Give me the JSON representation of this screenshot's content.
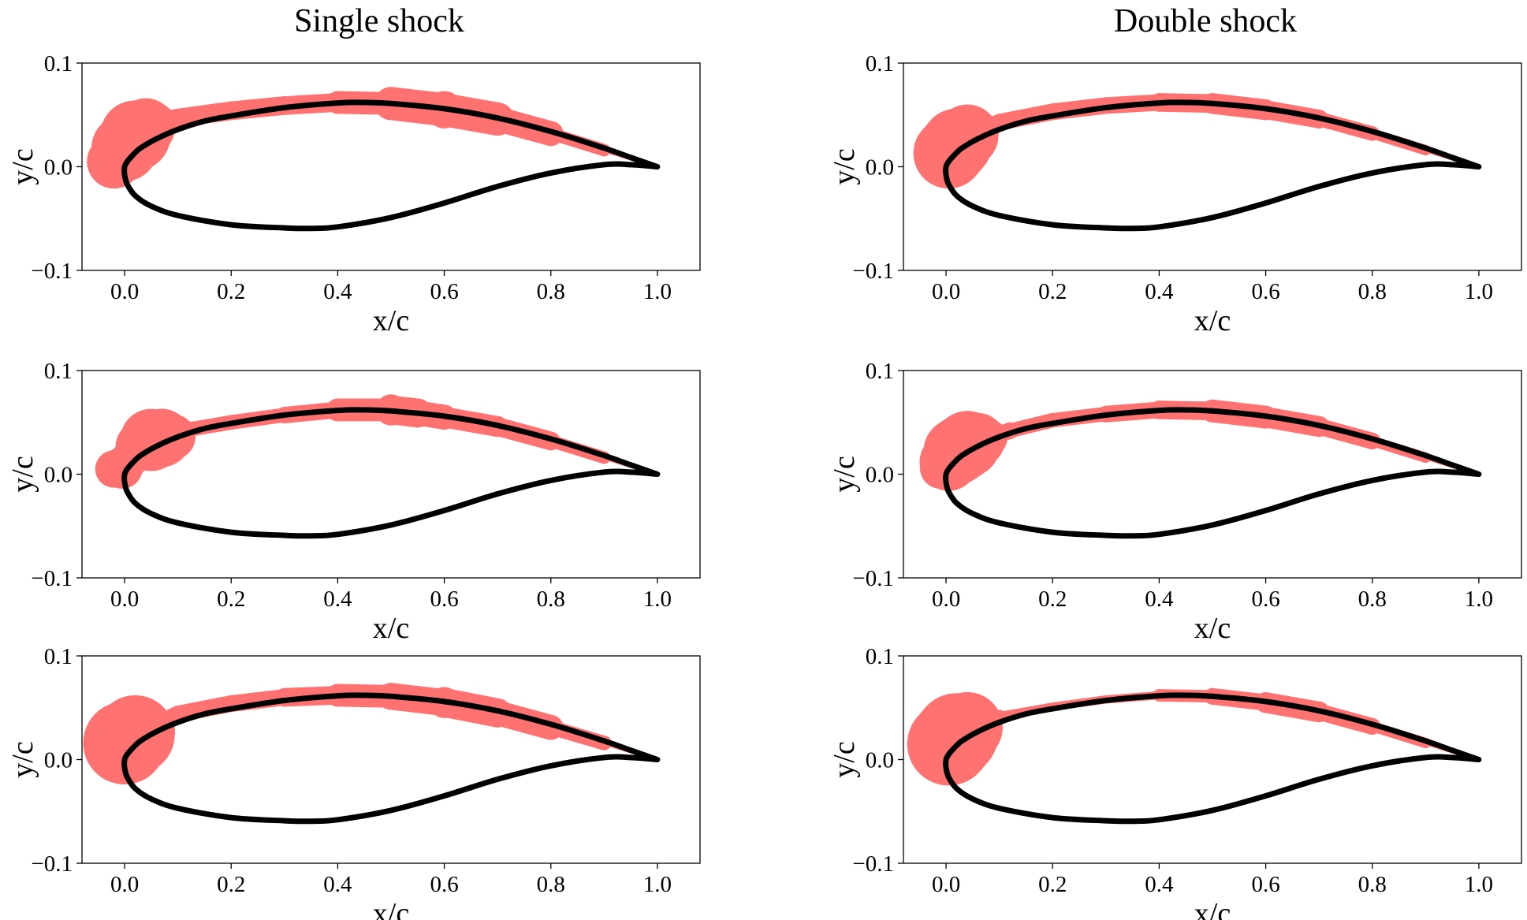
{
  "column_titles": [
    "Single shock",
    "Double shock"
  ],
  "chart_data": [
    {
      "type": "line",
      "column": "Single shock",
      "row": 1,
      "xlabel": "x/c",
      "ylabel": "y/c",
      "xlim": [
        -0.08,
        1.08
      ],
      "ylim": [
        -0.1,
        0.1
      ],
      "xticks": [
        "0.0",
        "0.2",
        "0.4",
        "0.6",
        "0.8",
        "1.0"
      ],
      "yticks": [
        "−0.1",
        "0.0",
        "0.1"
      ],
      "series": [
        {
          "style": "black-line",
          "x": [
            1.0,
            0.95,
            0.9,
            0.8,
            0.7,
            0.6,
            0.5,
            0.45,
            0.4,
            0.3,
            0.2,
            0.15,
            0.1,
            0.06,
            0.03,
            0.015,
            0.005,
            0.0,
            0.0,
            0.005,
            0.02,
            0.05,
            0.1,
            0.2,
            0.3,
            0.35,
            0.4,
            0.5,
            0.6,
            0.7,
            0.8,
            0.9,
            0.95,
            1.0
          ],
          "y": [
            0.0,
            0.009,
            0.018,
            0.034,
            0.047,
            0.056,
            0.061,
            0.062,
            0.0615,
            0.057,
            0.049,
            0.044,
            0.036,
            0.027,
            0.018,
            0.011,
            0.005,
            0.0,
            -0.008,
            -0.017,
            -0.028,
            -0.038,
            -0.047,
            -0.056,
            -0.059,
            -0.0595,
            -0.058,
            -0.049,
            -0.035,
            -0.019,
            -0.006,
            0.002,
            0.002,
            0.0
          ]
        },
        {
          "style": "red-band",
          "x": [
            -0.02,
            0.0,
            0.02,
            0.04,
            0.06,
            0.1,
            0.2,
            0.3,
            0.4,
            0.5,
            0.6,
            0.7,
            0.8,
            0.9,
            1.0
          ],
          "y": [
            0.005,
            0.018,
            0.03,
            0.038,
            0.043,
            0.047,
            0.054,
            0.059,
            0.062,
            0.061,
            0.055,
            0.046,
            0.032,
            0.016,
            0.0
          ],
          "width": [
            0.026,
            0.032,
            0.034,
            0.028,
            0.018,
            0.009,
            0.009,
            0.009,
            0.011,
            0.016,
            0.018,
            0.016,
            0.012,
            0.006,
            0.002
          ]
        }
      ]
    },
    {
      "type": "line",
      "column": "Single shock",
      "row": 2,
      "xlabel": "x/c",
      "ylabel": "y/c",
      "xlim": [
        -0.08,
        1.08
      ],
      "ylim": [
        -0.1,
        0.1
      ],
      "xticks": [
        "0.0",
        "0.2",
        "0.4",
        "0.6",
        "0.8",
        "1.0"
      ],
      "yticks": [
        "−0.1",
        "0.0",
        "0.1"
      ],
      "series": [
        {
          "style": "black-line",
          "x": [
            1.0,
            0.95,
            0.9,
            0.8,
            0.7,
            0.6,
            0.5,
            0.45,
            0.4,
            0.3,
            0.2,
            0.15,
            0.1,
            0.06,
            0.03,
            0.015,
            0.005,
            0.0,
            0.0,
            0.005,
            0.02,
            0.05,
            0.1,
            0.2,
            0.3,
            0.35,
            0.4,
            0.5,
            0.6,
            0.7,
            0.8,
            0.9,
            0.95,
            1.0
          ],
          "y": [
            0.0,
            0.009,
            0.018,
            0.034,
            0.047,
            0.056,
            0.061,
            0.062,
            0.0615,
            0.057,
            0.049,
            0.044,
            0.036,
            0.027,
            0.018,
            0.011,
            0.005,
            0.0,
            -0.008,
            -0.017,
            -0.028,
            -0.038,
            -0.047,
            -0.056,
            -0.059,
            -0.0595,
            -0.058,
            -0.049,
            -0.035,
            -0.019,
            -0.006,
            0.002,
            0.002,
            0.0
          ]
        },
        {
          "style": "red-band",
          "x": [
            -0.02,
            -0.005,
            0.01,
            0.03,
            0.05,
            0.07,
            0.09,
            0.12,
            0.2,
            0.3,
            0.4,
            0.5,
            0.55,
            0.6,
            0.7,
            0.8,
            0.9,
            1.0
          ],
          "y": [
            0.005,
            0.006,
            0.015,
            0.027,
            0.033,
            0.035,
            0.036,
            0.043,
            0.05,
            0.057,
            0.062,
            0.062,
            0.059,
            0.055,
            0.046,
            0.032,
            0.016,
            0.0
          ],
          "width": [
            0.018,
            0.02,
            0.018,
            0.024,
            0.03,
            0.028,
            0.022,
            0.008,
            0.007,
            0.008,
            0.011,
            0.015,
            0.014,
            0.012,
            0.01,
            0.009,
            0.006,
            0.002
          ]
        }
      ]
    },
    {
      "type": "line",
      "column": "Single shock",
      "row": 3,
      "xlabel": "x/c",
      "ylabel": "y/c",
      "xlim": [
        -0.08,
        1.08
      ],
      "ylim": [
        -0.1,
        0.1
      ],
      "xticks": [
        "0.0",
        "0.2",
        "0.4",
        "0.6",
        "0.8",
        "1.0"
      ],
      "yticks": [
        "−0.1",
        "0.0",
        "0.1"
      ],
      "series": [
        {
          "style": "black-line",
          "x": [
            1.0,
            0.95,
            0.9,
            0.8,
            0.7,
            0.6,
            0.5,
            0.45,
            0.4,
            0.3,
            0.2,
            0.15,
            0.1,
            0.06,
            0.03,
            0.015,
            0.005,
            0.0,
            0.0,
            0.005,
            0.02,
            0.05,
            0.1,
            0.2,
            0.3,
            0.35,
            0.4,
            0.5,
            0.6,
            0.7,
            0.8,
            0.9,
            0.95,
            1.0
          ],
          "y": [
            0.0,
            0.009,
            0.018,
            0.034,
            0.047,
            0.056,
            0.061,
            0.062,
            0.0615,
            0.057,
            0.049,
            0.044,
            0.036,
            0.027,
            0.018,
            0.011,
            0.005,
            0.0,
            -0.008,
            -0.017,
            -0.028,
            -0.038,
            -0.047,
            -0.056,
            -0.059,
            -0.0595,
            -0.058,
            -0.049,
            -0.035,
            -0.019,
            -0.006,
            0.002,
            0.002,
            0.0
          ]
        },
        {
          "style": "red-band",
          "x": [
            -0.015,
            0.0,
            0.02,
            0.04,
            0.06,
            0.1,
            0.2,
            0.3,
            0.4,
            0.5,
            0.6,
            0.7,
            0.8,
            0.9,
            1.0
          ],
          "y": [
            0.008,
            0.016,
            0.024,
            0.027,
            0.034,
            0.044,
            0.054,
            0.06,
            0.062,
            0.061,
            0.055,
            0.045,
            0.031,
            0.016,
            0.0
          ],
          "width": [
            0.02,
            0.04,
            0.038,
            0.028,
            0.012,
            0.008,
            0.008,
            0.009,
            0.011,
            0.013,
            0.015,
            0.014,
            0.012,
            0.007,
            0.002
          ]
        }
      ]
    },
    {
      "type": "line",
      "column": "Double shock",
      "row": 1,
      "xlabel": "x/c",
      "ylabel": "y/c",
      "xlim": [
        -0.08,
        1.08
      ],
      "ylim": [
        -0.1,
        0.1
      ],
      "xticks": [
        "0.0",
        "0.2",
        "0.4",
        "0.6",
        "0.8",
        "1.0"
      ],
      "yticks": [
        "−0.1",
        "0.0",
        "0.1"
      ],
      "series": [
        {
          "style": "black-line",
          "x": [
            1.0,
            0.95,
            0.9,
            0.8,
            0.7,
            0.6,
            0.5,
            0.45,
            0.4,
            0.3,
            0.2,
            0.15,
            0.1,
            0.06,
            0.03,
            0.015,
            0.005,
            0.0,
            0.0,
            0.005,
            0.02,
            0.05,
            0.1,
            0.2,
            0.3,
            0.35,
            0.4,
            0.5,
            0.6,
            0.7,
            0.8,
            0.9,
            0.95,
            1.0
          ],
          "y": [
            0.0,
            0.009,
            0.018,
            0.034,
            0.047,
            0.056,
            0.061,
            0.062,
            0.0615,
            0.057,
            0.049,
            0.044,
            0.036,
            0.027,
            0.018,
            0.011,
            0.005,
            0.0,
            -0.008,
            -0.017,
            -0.028,
            -0.038,
            -0.047,
            -0.056,
            -0.059,
            -0.0595,
            -0.058,
            -0.049,
            -0.035,
            -0.019,
            -0.006,
            0.002,
            0.002,
            0.0
          ]
        },
        {
          "style": "red-band",
          "x": [
            -0.01,
            0.005,
            0.02,
            0.04,
            0.06,
            0.1,
            0.2,
            0.3,
            0.4,
            0.5,
            0.6,
            0.7,
            0.8,
            0.9,
            1.0
          ],
          "y": [
            0.006,
            0.013,
            0.022,
            0.03,
            0.034,
            0.043,
            0.053,
            0.059,
            0.062,
            0.061,
            0.055,
            0.046,
            0.032,
            0.016,
            0.0
          ],
          "width": [
            0.022,
            0.034,
            0.034,
            0.03,
            0.02,
            0.008,
            0.008,
            0.008,
            0.009,
            0.01,
            0.01,
            0.009,
            0.007,
            0.005,
            0.002
          ]
        }
      ]
    },
    {
      "type": "line",
      "column": "Double shock",
      "row": 2,
      "xlabel": "x/c",
      "ylabel": "y/c",
      "xlim": [
        -0.08,
        1.08
      ],
      "ylim": [
        -0.1,
        0.1
      ],
      "xticks": [
        "0.0",
        "0.2",
        "0.4",
        "0.6",
        "0.8",
        "1.0"
      ],
      "yticks": [
        "−0.1",
        "0.0",
        "0.1"
      ],
      "series": [
        {
          "style": "black-line",
          "x": [
            1.0,
            0.95,
            0.9,
            0.8,
            0.7,
            0.6,
            0.5,
            0.45,
            0.4,
            0.3,
            0.2,
            0.15,
            0.1,
            0.06,
            0.03,
            0.015,
            0.005,
            0.0,
            0.0,
            0.005,
            0.02,
            0.05,
            0.1,
            0.2,
            0.3,
            0.35,
            0.4,
            0.5,
            0.6,
            0.7,
            0.8,
            0.9,
            0.95,
            1.0
          ],
          "y": [
            0.0,
            0.009,
            0.018,
            0.034,
            0.047,
            0.056,
            0.061,
            0.062,
            0.0615,
            0.057,
            0.049,
            0.044,
            0.036,
            0.027,
            0.018,
            0.011,
            0.005,
            0.0,
            -0.008,
            -0.017,
            -0.028,
            -0.038,
            -0.047,
            -0.056,
            -0.059,
            -0.0595,
            -0.058,
            -0.049,
            -0.035,
            -0.019,
            -0.006,
            0.002,
            0.002,
            0.0
          ]
        },
        {
          "style": "red-band",
          "x": [
            -0.01,
            0.005,
            0.02,
            0.04,
            0.06,
            0.08,
            0.12,
            0.2,
            0.3,
            0.4,
            0.5,
            0.6,
            0.7,
            0.8,
            0.9,
            1.0
          ],
          "y": [
            0.006,
            0.012,
            0.022,
            0.029,
            0.033,
            0.035,
            0.042,
            0.052,
            0.058,
            0.062,
            0.061,
            0.055,
            0.046,
            0.032,
            0.016,
            0.0
          ],
          "width": [
            0.02,
            0.028,
            0.032,
            0.032,
            0.026,
            0.018,
            0.008,
            0.007,
            0.008,
            0.009,
            0.011,
            0.011,
            0.01,
            0.008,
            0.005,
            0.002
          ]
        }
      ]
    },
    {
      "type": "line",
      "column": "Double shock",
      "row": 3,
      "xlabel": "x/c",
      "ylabel": "y/c",
      "xlim": [
        -0.08,
        1.08
      ],
      "ylim": [
        -0.1,
        0.1
      ],
      "xticks": [
        "0.0",
        "0.2",
        "0.4",
        "0.6",
        "0.8",
        "1.0"
      ],
      "yticks": [
        "−0.1",
        "0.0",
        "0.1"
      ],
      "series": [
        {
          "style": "black-line",
          "x": [
            1.0,
            0.95,
            0.9,
            0.8,
            0.7,
            0.6,
            0.5,
            0.45,
            0.4,
            0.3,
            0.2,
            0.15,
            0.1,
            0.06,
            0.03,
            0.015,
            0.005,
            0.0,
            0.0,
            0.005,
            0.02,
            0.05,
            0.1,
            0.2,
            0.3,
            0.35,
            0.4,
            0.5,
            0.6,
            0.7,
            0.8,
            0.9,
            0.95,
            1.0
          ],
          "y": [
            0.0,
            0.009,
            0.018,
            0.034,
            0.047,
            0.056,
            0.061,
            0.062,
            0.0615,
            0.057,
            0.049,
            0.044,
            0.036,
            0.027,
            0.018,
            0.011,
            0.005,
            0.0,
            -0.008,
            -0.017,
            -0.028,
            -0.038,
            -0.047,
            -0.056,
            -0.059,
            -0.0595,
            -0.058,
            -0.049,
            -0.035,
            -0.019,
            -0.006,
            0.002,
            0.002,
            0.0
          ]
        },
        {
          "style": "red-band",
          "x": [
            -0.01,
            0.005,
            0.02,
            0.04,
            0.06,
            0.1,
            0.2,
            0.3,
            0.4,
            0.5,
            0.6,
            0.7,
            0.8,
            0.9,
            1.0
          ],
          "y": [
            0.008,
            0.015,
            0.024,
            0.031,
            0.036,
            0.042,
            0.051,
            0.058,
            0.062,
            0.061,
            0.055,
            0.046,
            0.032,
            0.016,
            0.0
          ],
          "width": [
            0.024,
            0.04,
            0.04,
            0.034,
            0.02,
            0.006,
            0.004,
            0.004,
            0.006,
            0.008,
            0.01,
            0.01,
            0.008,
            0.005,
            0.002
          ]
        }
      ]
    }
  ]
}
